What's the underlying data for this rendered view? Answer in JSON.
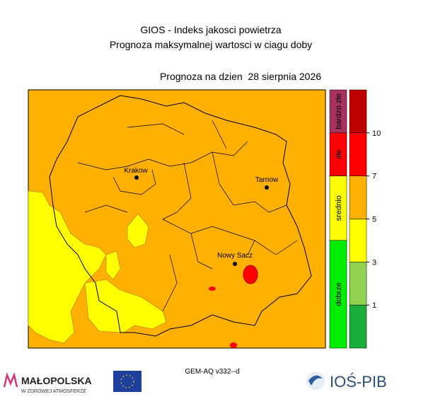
{
  "header": {
    "title": "GIOS - Indeks jakosci powietrza",
    "subtitle": "Prognoza maksymalnej wartosci w ciagu doby",
    "forecast_date": "Prognoza na dzien  28 sierpnia 2026"
  },
  "map": {
    "cities": [
      {
        "name": "Krakow"
      },
      {
        "name": "Tarnow"
      },
      {
        "name": "Nowy Sacz"
      }
    ]
  },
  "legend": {
    "categories": [
      {
        "label": "bardzo złe",
        "color": "#a8325e"
      },
      {
        "label": "złe",
        "color": "#ff0000"
      },
      {
        "label": "srednio",
        "color": "#ffff00"
      },
      {
        "label": "dobrze",
        "color": "#00ee00"
      }
    ],
    "scale": {
      "colors": [
        "#c00000",
        "#ff0000",
        "#ffb000",
        "#ffff00",
        "#92d050",
        "#1aad3a"
      ],
      "ticks": [
        10,
        7,
        5,
        3,
        1
      ]
    }
  },
  "footer": {
    "model": "GEM-AQ v332--d",
    "logo_left": "MAŁOPOLSKA",
    "logo_left_sub": "W ZDROWEJ ATMOSFERZE",
    "logo_right": "IOŚ-PIB"
  }
}
